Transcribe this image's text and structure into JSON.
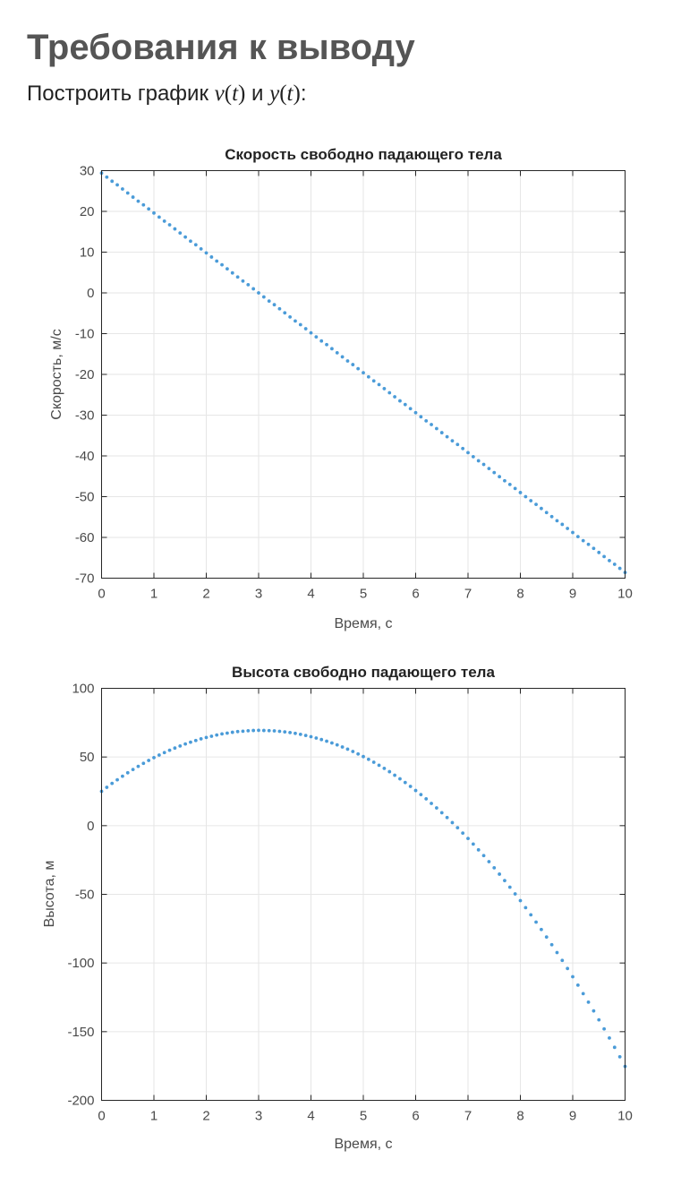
{
  "heading": "Требования к выводу",
  "instruction": {
    "prefix": "Построить график",
    "f1_name": "v",
    "f1_arg": "t",
    "conj": "и",
    "f2_name": "y",
    "f2_arg": "t",
    "suffix": ":"
  },
  "colors": {
    "series": "#4a9bd8",
    "grid": "#e6e6e6",
    "axes": "#262626"
  },
  "chart_data": [
    {
      "type": "scatter",
      "title": "Скорость свободно падающего тела",
      "xlabel": "Время, с",
      "ylabel": "Скорость, м/с",
      "xlim": [
        0,
        10
      ],
      "ylim": [
        -70,
        30
      ],
      "xticks": [
        0,
        1,
        2,
        3,
        4,
        5,
        6,
        7,
        8,
        9,
        10
      ],
      "yticks": [
        30,
        20,
        10,
        0,
        -10,
        -20,
        -30,
        -40,
        -50,
        -60,
        -70
      ],
      "grid": true,
      "series": [
        {
          "x": [
            0,
            0.1,
            0.2,
            0.3,
            0.4,
            0.5,
            0.6,
            0.7,
            0.8,
            0.9,
            1,
            1.1,
            1.2,
            1.3,
            1.4,
            1.5,
            1.6,
            1.7,
            1.8,
            1.9,
            2,
            2.1,
            2.2,
            2.3,
            2.4,
            2.5,
            2.6,
            2.7,
            2.8,
            2.9,
            3,
            3.1,
            3.2,
            3.3,
            3.4,
            3.5,
            3.6,
            3.7,
            3.8,
            3.9,
            4,
            4.1,
            4.2,
            4.3,
            4.4,
            4.5,
            4.6,
            4.7,
            4.8,
            4.9,
            5,
            5.1,
            5.2,
            5.3,
            5.4,
            5.5,
            5.6,
            5.7,
            5.8,
            5.9,
            6,
            6.1,
            6.2,
            6.3,
            6.4,
            6.5,
            6.6,
            6.7,
            6.8,
            6.9,
            7,
            7.1,
            7.2,
            7.3,
            7.4,
            7.5,
            7.6,
            7.7,
            7.8,
            7.9,
            8,
            8.1,
            8.2,
            8.3,
            8.4,
            8.5,
            8.6,
            8.7,
            8.8,
            8.9,
            9,
            9.1,
            9.2,
            9.3,
            9.4,
            9.5,
            9.6,
            9.7,
            9.8,
            9.9,
            10
          ],
          "y": [
            29.4,
            28.4,
            27.4,
            26.5,
            25.5,
            24.5,
            23.5,
            22.5,
            21.6,
            20.6,
            19.6,
            18.6,
            17.6,
            16.7,
            15.7,
            14.7,
            13.7,
            12.7,
            11.8,
            10.8,
            9.8,
            8.8,
            7.8,
            6.9,
            5.9,
            4.9,
            3.9,
            2.9,
            2,
            1,
            0,
            -1,
            -2,
            -2.9,
            -3.9,
            -4.9,
            -5.9,
            -6.9,
            -7.8,
            -8.8,
            -9.8,
            -10.8,
            -11.8,
            -12.7,
            -13.7,
            -14.7,
            -15.7,
            -16.7,
            -17.6,
            -18.6,
            -19.6,
            -20.6,
            -21.6,
            -22.5,
            -23.5,
            -24.5,
            -25.5,
            -26.5,
            -27.4,
            -28.4,
            -29.4,
            -30.4,
            -31.4,
            -32.3,
            -33.3,
            -34.3,
            -35.3,
            -36.3,
            -37.2,
            -38.2,
            -39.2,
            -40.2,
            -41.2,
            -42.1,
            -43.1,
            -44.1,
            -45.1,
            -46.1,
            -47,
            -48,
            -49,
            -50,
            -51,
            -51.9,
            -52.9,
            -53.9,
            -54.9,
            -55.9,
            -56.8,
            -57.8,
            -58.8,
            -59.8,
            -60.8,
            -61.7,
            -62.7,
            -63.7,
            -64.7,
            -65.7,
            -66.6,
            -67.6,
            -68.6
          ]
        }
      ]
    },
    {
      "type": "scatter",
      "title": "Высота свободно падающего тела",
      "xlabel": "Время, с",
      "ylabel": "Высота, м",
      "xlim": [
        0,
        10
      ],
      "ylim": [
        -200,
        100
      ],
      "xticks": [
        0,
        1,
        2,
        3,
        4,
        5,
        6,
        7,
        8,
        9,
        10
      ],
      "yticks": [
        100,
        50,
        0,
        -50,
        -100,
        -150,
        -200
      ],
      "grid": true,
      "series": [
        {
          "x": [
            0,
            0.1,
            0.2,
            0.3,
            0.4,
            0.5,
            0.6,
            0.7,
            0.8,
            0.9,
            1,
            1.1,
            1.2,
            1.3,
            1.4,
            1.5,
            1.6,
            1.7,
            1.8,
            1.9,
            2,
            2.1,
            2.2,
            2.3,
            2.4,
            2.5,
            2.6,
            2.7,
            2.8,
            2.9,
            3,
            3.1,
            3.2,
            3.3,
            3.4,
            3.5,
            3.6,
            3.7,
            3.8,
            3.9,
            4,
            4.1,
            4.2,
            4.3,
            4.4,
            4.5,
            4.6,
            4.7,
            4.8,
            4.9,
            5,
            5.1,
            5.2,
            5.3,
            5.4,
            5.5,
            5.6,
            5.7,
            5.8,
            5.9,
            6,
            6.1,
            6.2,
            6.3,
            6.4,
            6.5,
            6.6,
            6.7,
            6.8,
            6.9,
            7,
            7.1,
            7.2,
            7.3,
            7.4,
            7.5,
            7.6,
            7.7,
            7.8,
            7.9,
            8,
            8.1,
            8.2,
            8.3,
            8.4,
            8.5,
            8.6,
            8.7,
            8.8,
            8.9,
            9,
            9.1,
            9.2,
            9.3,
            9.4,
            9.5,
            9.6,
            9.7,
            9.8,
            9.9,
            10
          ],
          "y": [
            25,
            27.9,
            30.8,
            33.4,
            36,
            38.5,
            40.9,
            43.2,
            45.4,
            47.5,
            49.5,
            51.4,
            53.2,
            54.9,
            56.5,
            58,
            59.5,
            60.8,
            62,
            63.2,
            64.2,
            65.1,
            66,
            66.8,
            67.4,
            68,
            68.5,
            68.8,
            69.1,
            69.3,
            69.4,
            69.3,
            69.2,
            69,
            68.7,
            68.3,
            67.8,
            67.2,
            66.5,
            65.7,
            64.8,
            63.8,
            62.7,
            61.5,
            60.2,
            58.8,
            57.3,
            55.7,
            54,
            52.2,
            50.3,
            48.3,
            46.2,
            44,
            41.7,
            39.3,
            36.7,
            34.1,
            31.4,
            28.6,
            25.6,
            22.6,
            19.5,
            16.2,
            12.9,
            9.4,
            5.9,
            2.2,
            -1.5,
            -5.4,
            -9.3,
            -13.4,
            -17.6,
            -21.8,
            -26.2,
            -30.7,
            -35.3,
            -40,
            -44.8,
            -49.7,
            -54.6,
            -59.7,
            -64.9,
            -70.2,
            -75.6,
            -81.1,
            -86.7,
            -92.4,
            -98.1,
            -104,
            -110,
            -116.1,
            -122.3,
            -128.5,
            -134.9,
            -141.4,
            -148,
            -154.6,
            -161.4,
            -168.3,
            -175.3
          ]
        }
      ]
    }
  ]
}
